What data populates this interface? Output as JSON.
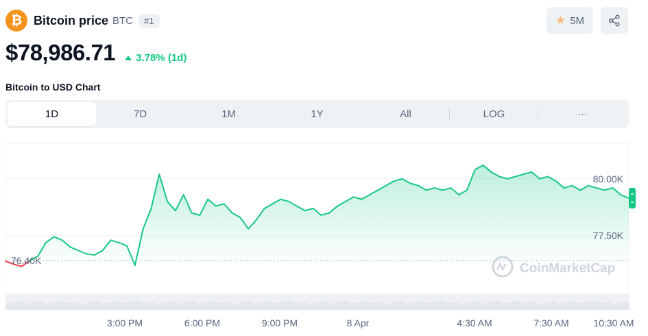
{
  "coin": {
    "name": "Bitcoin price",
    "symbol": "BTC",
    "rank": "#1",
    "logo_glyph": "₿",
    "brand_color": "#f7931a"
  },
  "price": {
    "value": "$78,986.71",
    "change": "3.78% (1d)",
    "change_direction": "up",
    "change_color": "#16c784"
  },
  "actions": {
    "watchlist_count": "5M",
    "watch_icon": "star-icon",
    "share_icon": "share-icon"
  },
  "chart_title": "Bitcoin to USD Chart",
  "tabs": [
    {
      "label": "1D",
      "active": true
    },
    {
      "label": "7D",
      "active": false
    },
    {
      "label": "1M",
      "active": false
    },
    {
      "label": "1Y",
      "active": false
    },
    {
      "label": "All",
      "active": false
    },
    {
      "label": "LOG",
      "active": false
    },
    {
      "label": "···",
      "active": false
    }
  ],
  "watermark": "CoinMarketCap",
  "chart_data": {
    "type": "area",
    "title": "",
    "xlabel": "",
    "ylabel": "",
    "x_ticks": [
      "3:00 PM",
      "6:00 PM",
      "9:00 PM",
      "8 Apr",
      "4:30 AM",
      "7:30 AM",
      "10:30 AM"
    ],
    "y_ticks": [
      "80.00K",
      "77.50K"
    ],
    "baseline_label": "76.40K",
    "baseline_value": 76400,
    "ylim": [
      75200,
      81500
    ],
    "colors": {
      "up": "#16c784",
      "down": "#ea3943"
    },
    "series": [
      {
        "values": [
          76380,
          76250,
          76150,
          76400,
          76600,
          77200,
          77450,
          77300,
          77000,
          76850,
          76700,
          76650,
          76850,
          77300,
          77200,
          77050,
          76200,
          77800,
          78700,
          80200,
          79000,
          78600,
          79300,
          78500,
          78400,
          79100,
          78800,
          78900,
          78500,
          78300,
          77800,
          78200,
          78700,
          78900,
          79100,
          79000,
          78800,
          78600,
          78700,
          78400,
          78500,
          78800,
          79000,
          79200,
          79100,
          79300,
          79500,
          79700,
          79900,
          80000,
          79800,
          79700,
          79500,
          79600,
          79500,
          79600,
          79300,
          79500,
          80400,
          80600,
          80300,
          80100,
          80000,
          80100,
          80200,
          80300,
          80000,
          80100,
          79900,
          79600,
          79700,
          79500,
          79700,
          79600,
          79500,
          79600,
          79300,
          79150
        ]
      }
    ]
  }
}
